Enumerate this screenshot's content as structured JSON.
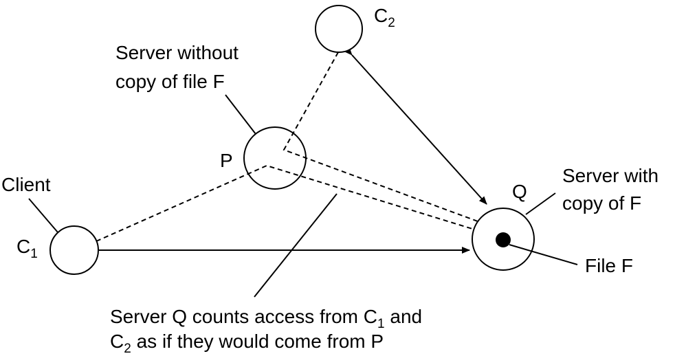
{
  "nodes": {
    "c2": {
      "name": "C",
      "sub": "2"
    },
    "p": {
      "name": "P"
    },
    "client": {
      "label": "Client"
    },
    "c1": {
      "name": "C",
      "sub": "1"
    },
    "q": {
      "name": "Q"
    }
  },
  "labels": {
    "server_without": [
      "Server without",
      "copy of file F"
    ],
    "server_with": [
      "Server with",
      "copy of F"
    ],
    "file_f": "File F",
    "caption": {
      "line1_pre": "Server Q counts access from C",
      "line1_sub": "1",
      "line1_post": " and",
      "line2_pre": "C",
      "line2_sub": "2",
      "line2_post": "  as if they would come from P"
    }
  },
  "colors": {
    "stroke": "#000000",
    "background": "#ffffff"
  }
}
